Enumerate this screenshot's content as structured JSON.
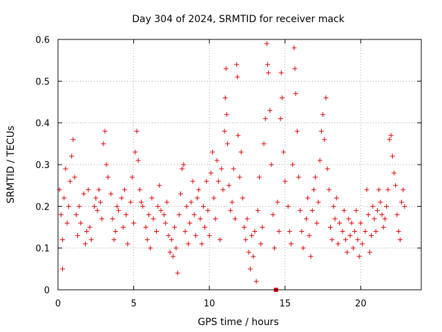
{
  "chart_data": {
    "type": "scatter",
    "title": "Day 304 of 2024, SRMTID for receiver mack",
    "xlabel": "GPS time / hours",
    "ylabel": "SRMTID / TECUs",
    "xlim": [
      0,
      24
    ],
    "ylim": [
      0,
      0.6
    ],
    "xticks": [
      0,
      5,
      10,
      15,
      20
    ],
    "xtick_labels": [
      "0",
      "5",
      "10",
      "15",
      "20"
    ],
    "yticks": [
      0,
      0.1,
      0.2,
      0.3,
      0.4,
      0.5,
      0.6
    ],
    "ytick_labels": [
      "0",
      "0.1",
      "0.2",
      "0.3",
      "0.4",
      "0.5",
      "0.6"
    ],
    "grid": true,
    "marker": "plus",
    "color": "#e00000",
    "series": [
      {
        "name": "SRMTID",
        "points": [
          [
            0.1,
            0.24
          ],
          [
            0.2,
            0.18
          ],
          [
            0.3,
            0.12
          ],
          [
            0.3,
            0.05
          ],
          [
            0.4,
            0.22
          ],
          [
            0.5,
            0.29
          ],
          [
            0.6,
            0.16
          ],
          [
            0.7,
            0.2
          ],
          [
            0.8,
            0.26
          ],
          [
            0.9,
            0.32
          ],
          [
            1.0,
            0.36
          ],
          [
            1.1,
            0.27
          ],
          [
            1.2,
            0.18
          ],
          [
            1.3,
            0.13
          ],
          [
            1.4,
            0.2
          ],
          [
            1.5,
            0.16
          ],
          [
            1.7,
            0.23
          ],
          [
            1.8,
            0.11
          ],
          [
            1.9,
            0.14
          ],
          [
            2.0,
            0.24
          ],
          [
            2.1,
            0.15
          ],
          [
            2.2,
            0.12
          ],
          [
            2.4,
            0.2
          ],
          [
            2.5,
            0.22
          ],
          [
            2.6,
            0.19
          ],
          [
            2.7,
            0.24
          ],
          [
            2.8,
            0.21
          ],
          [
            2.9,
            0.17
          ],
          [
            3.0,
            0.35
          ],
          [
            3.1,
            0.38
          ],
          [
            3.2,
            0.3
          ],
          [
            3.3,
            0.27
          ],
          [
            3.5,
            0.23
          ],
          [
            3.6,
            0.17
          ],
          [
            3.7,
            0.12
          ],
          [
            3.8,
            0.14
          ],
          [
            3.9,
            0.2
          ],
          [
            4.0,
            0.19
          ],
          [
            4.2,
            0.22
          ],
          [
            4.3,
            0.15
          ],
          [
            4.4,
            0.24
          ],
          [
            4.5,
            0.18
          ],
          [
            4.6,
            0.11
          ],
          [
            4.8,
            0.21
          ],
          [
            4.9,
            0.27
          ],
          [
            5.0,
            0.16
          ],
          [
            5.1,
            0.33
          ],
          [
            5.2,
            0.38
          ],
          [
            5.3,
            0.31
          ],
          [
            5.4,
            0.24
          ],
          [
            5.5,
            0.21
          ],
          [
            5.6,
            0.2
          ],
          [
            5.8,
            0.15
          ],
          [
            5.9,
            0.12
          ],
          [
            6.0,
            0.18
          ],
          [
            6.1,
            0.1
          ],
          [
            6.2,
            0.22
          ],
          [
            6.3,
            0.17
          ],
          [
            6.5,
            0.14
          ],
          [
            6.6,
            0.2
          ],
          [
            6.7,
            0.25
          ],
          [
            6.8,
            0.19
          ],
          [
            7.0,
            0.18
          ],
          [
            7.1,
            0.16
          ],
          [
            7.2,
            0.21
          ],
          [
            7.3,
            0.13
          ],
          [
            7.4,
            0.09
          ],
          [
            7.5,
            0.12
          ],
          [
            7.6,
            0.08
          ],
          [
            7.7,
            0.15
          ],
          [
            7.8,
            0.1
          ],
          [
            7.9,
            0.04
          ],
          [
            8.0,
            0.18
          ],
          [
            8.1,
            0.23
          ],
          [
            8.2,
            0.29
          ],
          [
            8.3,
            0.3
          ],
          [
            8.4,
            0.14
          ],
          [
            8.5,
            0.2
          ],
          [
            8.6,
            0.11
          ],
          [
            8.7,
            0.16
          ],
          [
            8.8,
            0.21
          ],
          [
            8.9,
            0.26
          ],
          [
            9.0,
            0.18
          ],
          [
            9.1,
            0.13
          ],
          [
            9.2,
            0.22
          ],
          [
            9.3,
            0.24
          ],
          [
            9.4,
            0.17
          ],
          [
            9.5,
            0.11
          ],
          [
            9.6,
            0.2
          ],
          [
            9.7,
            0.15
          ],
          [
            9.8,
            0.26
          ],
          [
            9.9,
            0.19
          ],
          [
            10.0,
            0.13
          ],
          [
            10.1,
            0.28
          ],
          [
            10.2,
            0.33
          ],
          [
            10.3,
            0.22
          ],
          [
            10.4,
            0.17
          ],
          [
            10.5,
            0.31
          ],
          [
            10.6,
            0.26
          ],
          [
            10.7,
            0.12
          ],
          [
            10.8,
            0.29
          ],
          [
            10.9,
            0.24
          ],
          [
            11.0,
            0.38
          ],
          [
            11.05,
            0.46
          ],
          [
            11.1,
            0.53
          ],
          [
            11.15,
            0.42
          ],
          [
            11.2,
            0.35
          ],
          [
            11.3,
            0.25
          ],
          [
            11.4,
            0.19
          ],
          [
            11.5,
            0.21
          ],
          [
            11.6,
            0.29
          ],
          [
            11.7,
            0.17
          ],
          [
            11.8,
            0.54
          ],
          [
            11.85,
            0.51
          ],
          [
            11.9,
            0.37
          ],
          [
            12.0,
            0.27
          ],
          [
            12.1,
            0.33
          ],
          [
            12.2,
            0.22
          ],
          [
            12.3,
            0.15
          ],
          [
            12.4,
            0.12
          ],
          [
            12.5,
            0.17
          ],
          [
            12.6,
            0.09
          ],
          [
            12.7,
            0.05
          ],
          [
            12.8,
            0.13
          ],
          [
            12.9,
            0.08
          ],
          [
            13.0,
            0.14
          ],
          [
            13.1,
            0.02
          ],
          [
            13.2,
            0.19
          ],
          [
            13.3,
            0.27
          ],
          [
            13.4,
            0.11
          ],
          [
            13.5,
            0.15
          ],
          [
            13.6,
            0.35
          ],
          [
            13.7,
            0.41
          ],
          [
            13.8,
            0.59
          ],
          [
            13.85,
            0.54
          ],
          [
            13.9,
            0.52
          ],
          [
            14.0,
            0.43
          ],
          [
            14.1,
            0.3
          ],
          [
            14.2,
            0.18
          ],
          [
            14.3,
            0.1
          ],
          [
            14.5,
            0.21
          ],
          [
            14.6,
            0.14
          ],
          [
            14.7,
            0.41
          ],
          [
            14.75,
            0.52
          ],
          [
            14.8,
            0.46
          ],
          [
            14.9,
            0.33
          ],
          [
            15.0,
            0.26
          ],
          [
            15.2,
            0.2
          ],
          [
            15.3,
            0.14
          ],
          [
            15.4,
            0.11
          ],
          [
            15.5,
            0.3
          ],
          [
            15.6,
            0.58
          ],
          [
            15.65,
            0.53
          ],
          [
            15.7,
            0.47
          ],
          [
            15.8,
            0.38
          ],
          [
            15.9,
            0.27
          ],
          [
            16.0,
            0.19
          ],
          [
            16.1,
            0.14
          ],
          [
            16.2,
            0.1
          ],
          [
            16.4,
            0.17
          ],
          [
            16.5,
            0.22
          ],
          [
            16.6,
            0.13
          ],
          [
            16.7,
            0.08
          ],
          [
            16.8,
            0.19
          ],
          [
            16.9,
            0.24
          ],
          [
            17.0,
            0.27
          ],
          [
            17.1,
            0.16
          ],
          [
            17.2,
            0.21
          ],
          [
            17.3,
            0.31
          ],
          [
            17.4,
            0.38
          ],
          [
            17.5,
            0.42
          ],
          [
            17.6,
            0.36
          ],
          [
            17.7,
            0.46
          ],
          [
            17.8,
            0.29
          ],
          [
            17.9,
            0.24
          ],
          [
            18.0,
            0.15
          ],
          [
            18.1,
            0.12
          ],
          [
            18.2,
            0.2
          ],
          [
            18.3,
            0.17
          ],
          [
            18.4,
            0.22
          ],
          [
            18.5,
            0.11
          ],
          [
            18.6,
            0.16
          ],
          [
            18.8,
            0.14
          ],
          [
            18.9,
            0.19
          ],
          [
            19.0,
            0.12
          ],
          [
            19.1,
            0.09
          ],
          [
            19.2,
            0.17
          ],
          [
            19.3,
            0.13
          ],
          [
            19.4,
            0.16
          ],
          [
            19.5,
            0.1
          ],
          [
            19.6,
            0.14
          ],
          [
            19.7,
            0.19
          ],
          [
            19.8,
            0.12
          ],
          [
            19.9,
            0.08
          ],
          [
            20.0,
            0.16
          ],
          [
            20.1,
            0.11
          ],
          [
            20.3,
            0.14
          ],
          [
            20.4,
            0.24
          ],
          [
            20.5,
            0.18
          ],
          [
            20.6,
            0.09
          ],
          [
            20.7,
            0.13
          ],
          [
            20.8,
            0.2
          ],
          [
            20.9,
            0.17
          ],
          [
            21.0,
            0.14
          ],
          [
            21.1,
            0.19
          ],
          [
            21.2,
            0.24
          ],
          [
            21.3,
            0.21
          ],
          [
            21.4,
            0.18
          ],
          [
            21.5,
            0.15
          ],
          [
            21.6,
            0.17
          ],
          [
            21.7,
            0.2
          ],
          [
            21.8,
            0.24
          ],
          [
            21.9,
            0.36
          ],
          [
            22.0,
            0.37
          ],
          [
            22.1,
            0.32
          ],
          [
            22.2,
            0.28
          ],
          [
            22.3,
            0.25
          ],
          [
            22.4,
            0.18
          ],
          [
            22.5,
            0.14
          ],
          [
            22.6,
            0.12
          ],
          [
            22.7,
            0.21
          ],
          [
            22.8,
            0.24
          ],
          [
            22.9,
            0.2
          ]
        ],
        "marker_points": [
          [
            14.4,
            0.0
          ]
        ]
      }
    ]
  }
}
